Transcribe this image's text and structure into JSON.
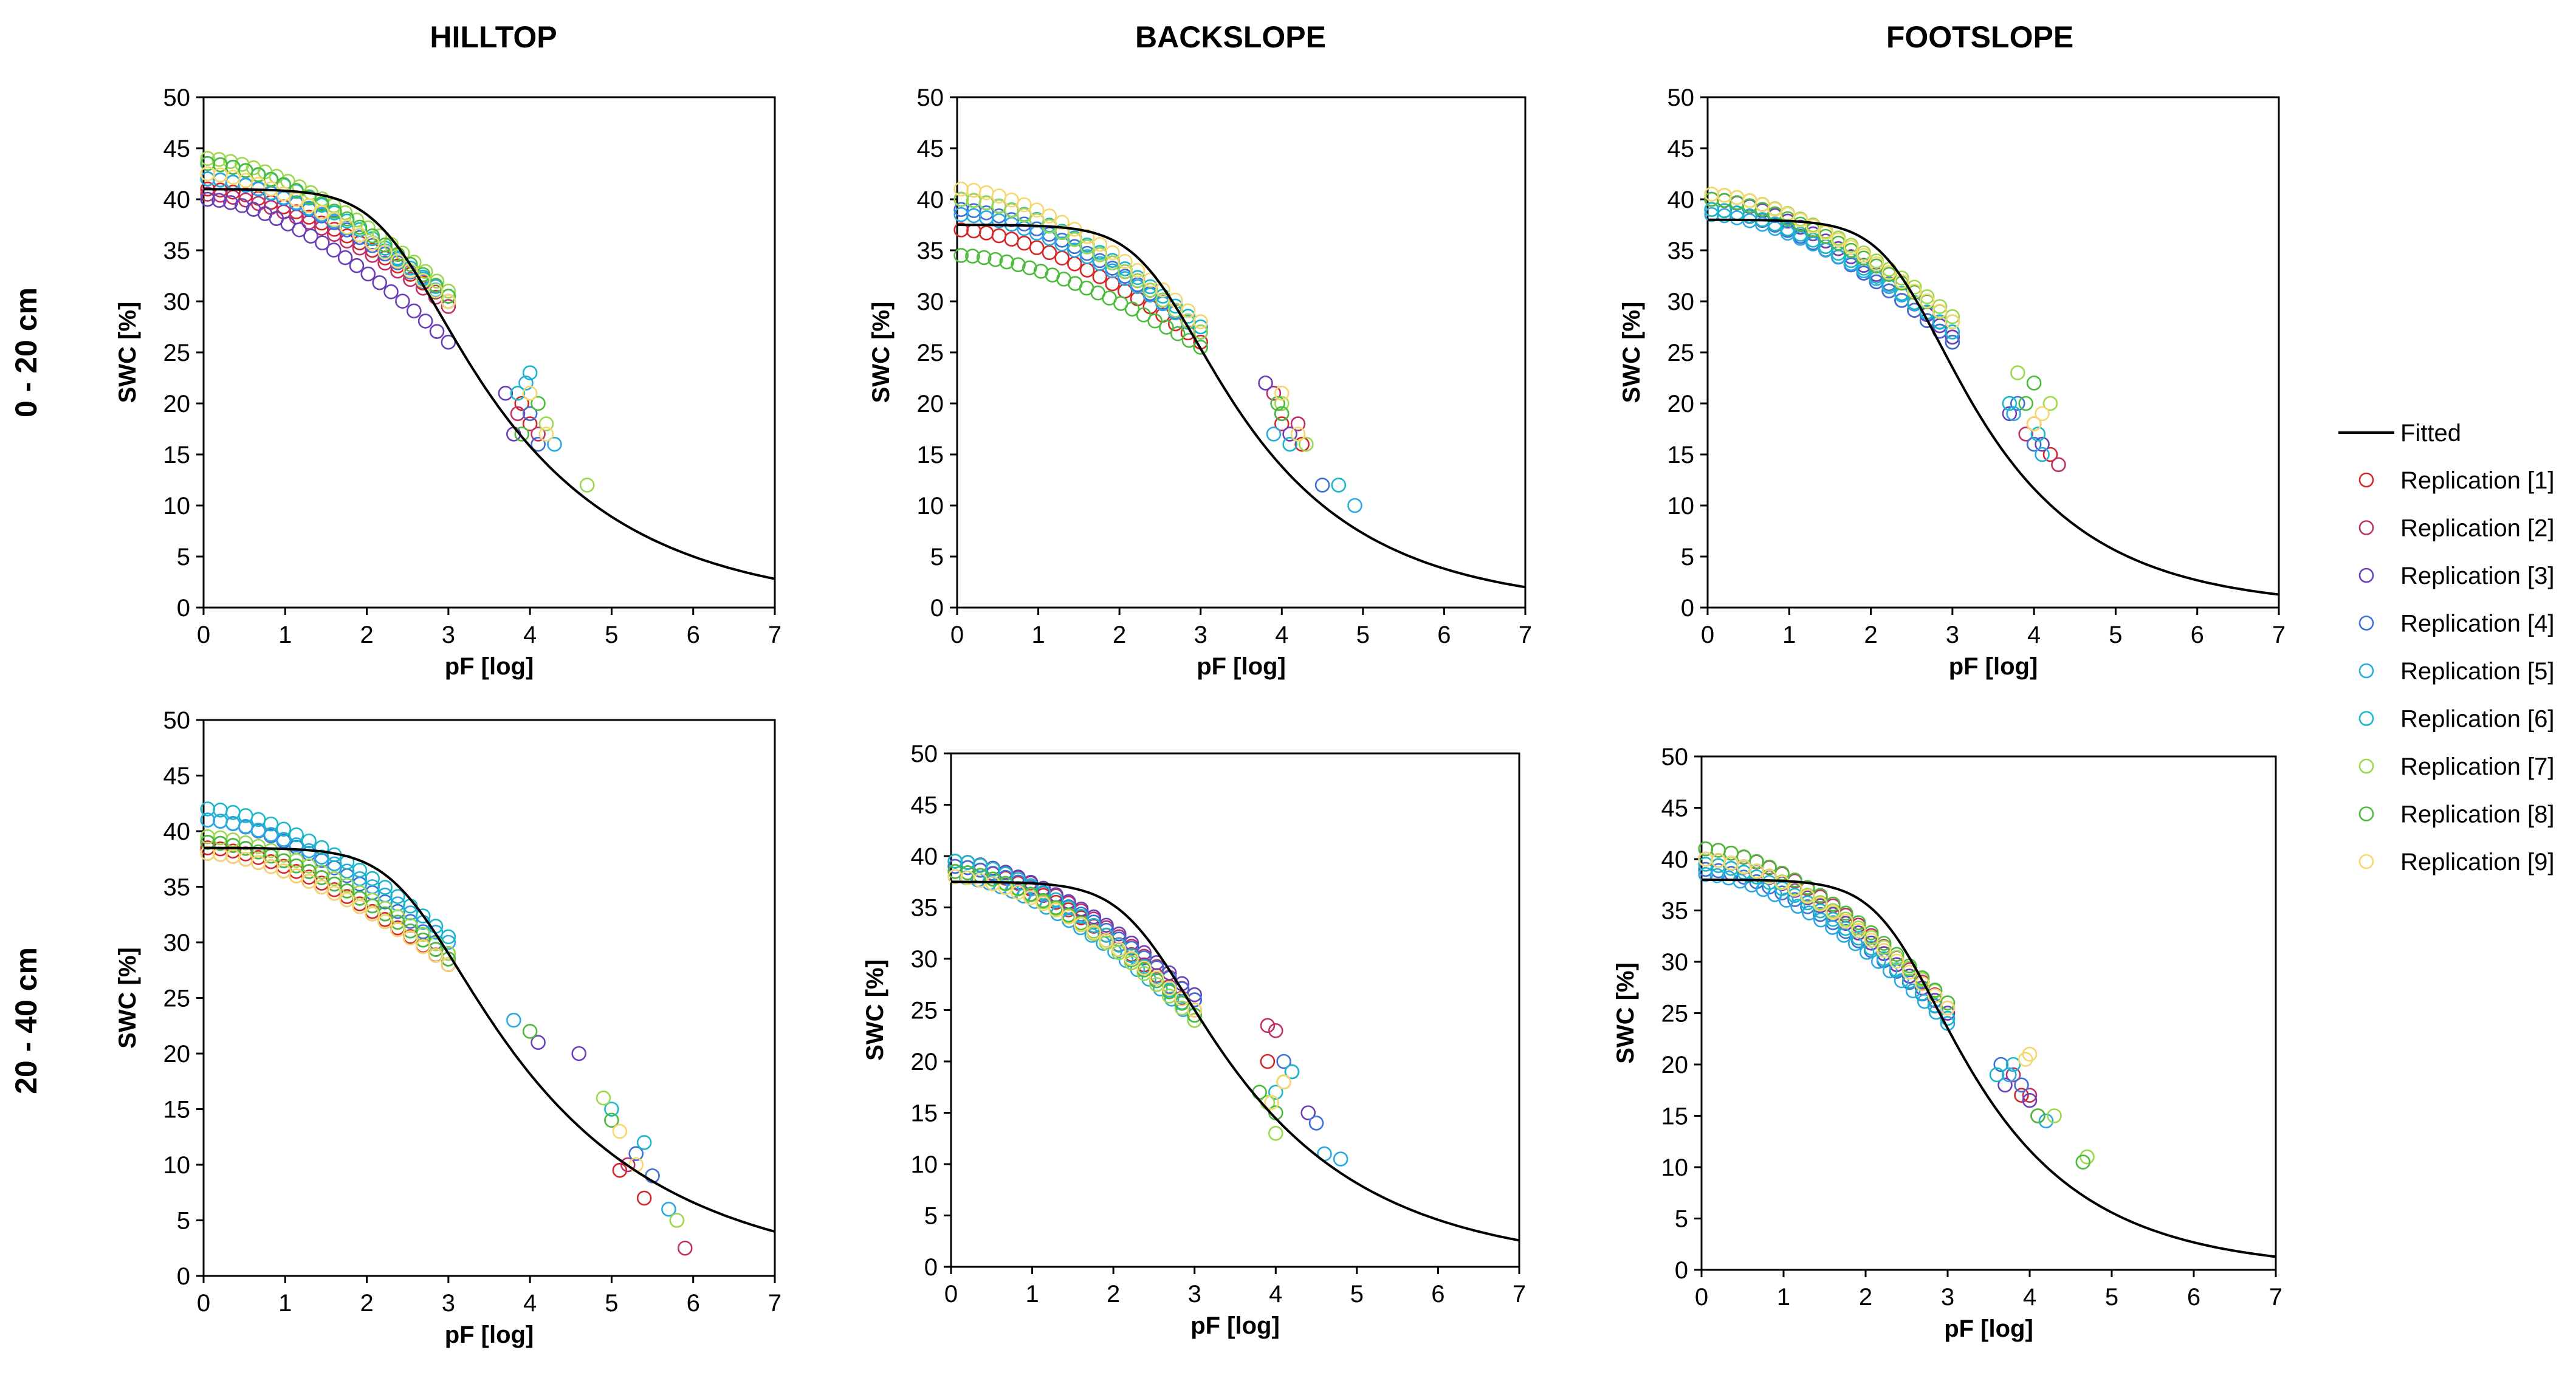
{
  "column_titles": [
    "HILLTOP",
    "BACKSLOPE",
    "FOOTSLOPE"
  ],
  "row_labels": [
    "0 - 20 cm",
    "20 - 40 cm"
  ],
  "legend": {
    "fitted_label": "Fitted",
    "replications": [
      {
        "label": "Replication [1]",
        "color": "#d62728"
      },
      {
        "label": "Replication [2]",
        "color": "#c0306a"
      },
      {
        "label": "Replication [3]",
        "color": "#6a3fb8"
      },
      {
        "label": "Replication [4]",
        "color": "#3c6fd8"
      },
      {
        "label": "Replication [5]",
        "color": "#29a9e0"
      },
      {
        "label": "Replication [6]",
        "color": "#18b7c9"
      },
      {
        "label": "Replication [7]",
        "color": "#9bd84d"
      },
      {
        "label": "Replication [8]",
        "color": "#4cbb3c"
      },
      {
        "label": "Replication [9]",
        "color": "#f5d76e"
      }
    ]
  },
  "chart_data": [
    {
      "type": "scatter",
      "title": "HILLTOP",
      "depth": "0 - 20 cm",
      "xlabel": "pF [log]",
      "ylabel": "SWC [%]",
      "xlim": [
        0,
        7
      ],
      "ylim": [
        0,
        50
      ],
      "xticks": [
        0,
        1,
        2,
        3,
        4,
        5,
        6,
        7
      ],
      "yticks": [
        0,
        5,
        10,
        15,
        20,
        25,
        30,
        35,
        40,
        45,
        50
      ],
      "fitted": {
        "theta_r": 0,
        "theta_s": 41,
        "alpha": 0.0045,
        "n": 1.25
      },
      "series": [
        {
          "name": "Replication [1]",
          "ws": 41,
          "wd": 30,
          "n": 20,
          "wet": [
            [
              4.0,
              18
            ],
            [
              3.9,
              20
            ]
          ]
        },
        {
          "name": "Replication [2]",
          "ws": 40.5,
          "wd": 29.5,
          "n": 20,
          "wet": [
            [
              4.1,
              17
            ],
            [
              3.85,
              19
            ]
          ]
        },
        {
          "name": "Replication [3]",
          "ws": 40,
          "wd": 26,
          "n": 22,
          "wet": [
            [
              3.7,
              21
            ],
            [
              3.8,
              17
            ]
          ]
        },
        {
          "name": "Replication [4]",
          "ws": 42,
          "wd": 30,
          "n": 20,
          "wet": [
            [
              4.0,
              19
            ],
            [
              4.1,
              16
            ]
          ]
        },
        {
          "name": "Replication [5]",
          "ws": 42,
          "wd": 30.5,
          "n": 20,
          "wet": [
            [
              3.95,
              22
            ],
            [
              4.3,
              16
            ]
          ]
        },
        {
          "name": "Replication [6]",
          "ws": 43.5,
          "wd": 30,
          "n": 20,
          "wet": [
            [
              4.0,
              23
            ],
            [
              3.85,
              21
            ]
          ]
        },
        {
          "name": "Replication [7]",
          "ws": 44,
          "wd": 31,
          "n": 22,
          "wet": [
            [
              4.7,
              12
            ],
            [
              4.2,
              18
            ]
          ]
        },
        {
          "name": "Replication [8]",
          "ws": 43.5,
          "wd": 30.5,
          "n": 20,
          "wet": [
            [
              3.9,
              17
            ],
            [
              4.1,
              20
            ]
          ]
        },
        {
          "name": "Replication [9]",
          "ws": 42.5,
          "wd": 30,
          "n": 20,
          "wet": [
            [
              4.0,
              21
            ],
            [
              4.2,
              17
            ]
          ]
        }
      ]
    },
    {
      "type": "scatter",
      "title": "BACKSLOPE",
      "depth": "0 - 20 cm",
      "xlabel": "pF [log]",
      "ylabel": "SWC [%]",
      "xlim": [
        0,
        7
      ],
      "ylim": [
        0,
        50
      ],
      "xticks": [
        0,
        1,
        2,
        3,
        4,
        5,
        6,
        7
      ],
      "yticks": [
        0,
        5,
        10,
        15,
        20,
        25,
        30,
        35,
        40,
        45,
        50
      ],
      "fitted": {
        "theta_r": 0,
        "theta_s": 37.5,
        "alpha": 0.0035,
        "n": 1.28
      },
      "series": [
        {
          "name": "Replication [1]",
          "ws": 37,
          "wd": 26,
          "n": 20,
          "wet": [
            [
              4.0,
              18
            ],
            [
              4.25,
              16
            ]
          ]
        },
        {
          "name": "Replication [2]",
          "ws": 40,
          "wd": 27,
          "n": 20,
          "wet": [
            [
              3.9,
              21
            ],
            [
              4.2,
              18
            ]
          ]
        },
        {
          "name": "Replication [3]",
          "ws": 40,
          "wd": 27,
          "n": 20,
          "wet": [
            [
              3.8,
              22
            ],
            [
              4.1,
              17
            ]
          ]
        },
        {
          "name": "Replication [4]",
          "ws": 39,
          "wd": 27,
          "n": 20,
          "wet": [
            [
              4.0,
              19
            ],
            [
              4.5,
              12
            ]
          ]
        },
        {
          "name": "Replication [5]",
          "ws": 38.5,
          "wd": 27,
          "n": 20,
          "wet": [
            [
              4.9,
              10
            ],
            [
              3.9,
              17
            ]
          ]
        },
        {
          "name": "Replication [6]",
          "ws": 40,
          "wd": 27.5,
          "n": 20,
          "wet": [
            [
              4.7,
              12
            ],
            [
              4.1,
              16
            ]
          ]
        },
        {
          "name": "Replication [7]",
          "ws": 40,
          "wd": 27,
          "n": 20,
          "wet": [
            [
              4.0,
              20
            ],
            [
              4.3,
              16
            ]
          ]
        },
        {
          "name": "Replication [8]",
          "ws": 34.5,
          "wd": 25.5,
          "n": 22,
          "wet": [
            [
              4.0,
              19
            ],
            [
              3.95,
              20
            ]
          ]
        },
        {
          "name": "Replication [9]",
          "ws": 41,
          "wd": 28,
          "n": 20,
          "wet": [
            [
              4.0,
              21
            ],
            [
              4.2,
              17
            ]
          ]
        }
      ]
    },
    {
      "type": "scatter",
      "title": "FOOTSLOPE",
      "depth": "0 - 20 cm",
      "xlabel": "pF [log]",
      "ylabel": "SWC [%]",
      "xlim": [
        0,
        7
      ],
      "ylim": [
        0,
        50
      ],
      "xticks": [
        0,
        1,
        2,
        3,
        4,
        5,
        6,
        7
      ],
      "yticks": [
        0,
        5,
        10,
        15,
        20,
        25,
        30,
        35,
        40,
        45,
        50
      ],
      "fitted": {
        "theta_r": 0,
        "theta_s": 38,
        "alpha": 0.004,
        "n": 1.32
      },
      "series": [
        {
          "name": "Replication [1]",
          "ws": 39,
          "wd": 26,
          "n": 20,
          "wet": [
            [
              4.0,
              18
            ],
            [
              4.2,
              15
            ]
          ]
        },
        {
          "name": "Replication [2]",
          "ws": 40,
          "wd": 26.5,
          "n": 20,
          "wet": [
            [
              4.3,
              14
            ],
            [
              3.9,
              17
            ]
          ]
        },
        {
          "name": "Replication [3]",
          "ws": 40,
          "wd": 26.5,
          "n": 20,
          "wet": [
            [
              3.7,
              19
            ],
            [
              4.1,
              16
            ]
          ]
        },
        {
          "name": "Replication [4]",
          "ws": 39,
          "wd": 26,
          "n": 20,
          "wet": [
            [
              4.0,
              16
            ],
            [
              3.8,
              20
            ]
          ]
        },
        {
          "name": "Replication [5]",
          "ws": 38.5,
          "wd": 27,
          "n": 20,
          "wet": [
            [
              4.1,
              15
            ],
            [
              3.75,
              19
            ]
          ]
        },
        {
          "name": "Replication [6]",
          "ws": 39,
          "wd": 27,
          "n": 20,
          "wet": [
            [
              3.7,
              20
            ],
            [
              4.05,
              17
            ]
          ]
        },
        {
          "name": "Replication [7]",
          "ws": 40.5,
          "wd": 28.5,
          "n": 20,
          "wet": [
            [
              3.8,
              23
            ],
            [
              4.2,
              20
            ]
          ]
        },
        {
          "name": "Replication [8]",
          "ws": 40,
          "wd": 28,
          "n": 20,
          "wet": [
            [
              4.0,
              22
            ],
            [
              3.9,
              20
            ]
          ]
        },
        {
          "name": "Replication [9]",
          "ws": 40.5,
          "wd": 28,
          "n": 20,
          "wet": [
            [
              4.1,
              19
            ],
            [
              4.0,
              18
            ]
          ]
        }
      ]
    },
    {
      "type": "scatter",
      "title": "HILLTOP",
      "depth": "20 - 40 cm",
      "xlabel": "pF [log]",
      "ylabel": "SWC [%]",
      "xlim": [
        0,
        7
      ],
      "ylim": [
        0,
        50
      ],
      "xticks": [
        0,
        1,
        2,
        3,
        4,
        5,
        6,
        7
      ],
      "yticks": [
        0,
        5,
        10,
        15,
        20,
        25,
        30,
        35,
        40,
        45,
        50
      ],
      "fitted": {
        "theta_r": 0,
        "theta_s": 38.5,
        "alpha": 0.003,
        "n": 1.22
      },
      "series": [
        {
          "name": "Replication [1]",
          "ws": 38.5,
          "wd": 28,
          "n": 20,
          "wet": [
            [
              5.1,
              9.5
            ],
            [
              5.4,
              7
            ]
          ]
        },
        {
          "name": "Replication [2]",
          "ws": 38,
          "wd": 28,
          "n": 20,
          "wet": [
            [
              5.2,
              10
            ],
            [
              5.9,
              2.5
            ]
          ]
        },
        {
          "name": "Replication [3]",
          "ws": 39,
          "wd": 28.5,
          "n": 20,
          "wet": [
            [
              4.6,
              20
            ],
            [
              4.1,
              21
            ]
          ]
        },
        {
          "name": "Replication [4]",
          "ws": 41,
          "wd": 29,
          "n": 20,
          "wet": [
            [
              5.3,
              11
            ],
            [
              5.5,
              9
            ]
          ]
        },
        {
          "name": "Replication [5]",
          "ws": 41,
          "wd": 30,
          "n": 20,
          "wet": [
            [
              3.8,
              23
            ],
            [
              5.7,
              6
            ]
          ]
        },
        {
          "name": "Replication [6]",
          "ws": 42,
          "wd": 30.5,
          "n": 20,
          "wet": [
            [
              5.4,
              12
            ],
            [
              5.0,
              15
            ]
          ]
        },
        {
          "name": "Replication [7]",
          "ws": 39.5,
          "wd": 29,
          "n": 20,
          "wet": [
            [
              4.9,
              16
            ],
            [
              5.8,
              5
            ]
          ]
        },
        {
          "name": "Replication [8]",
          "ws": 39,
          "wd": 28.5,
          "n": 20,
          "wet": [
            [
              4.0,
              22
            ],
            [
              5.0,
              14
            ]
          ]
        },
        {
          "name": "Replication [9]",
          "ws": 38,
          "wd": 28,
          "n": 20,
          "wet": [
            [
              5.1,
              13
            ],
            [
              5.3,
              10
            ]
          ]
        }
      ]
    },
    {
      "type": "scatter",
      "title": "BACKSLOPE",
      "depth": "20 - 40 cm",
      "xlabel": "pF [log]",
      "ylabel": "SWC [%]",
      "xlim": [
        0,
        7
      ],
      "ylim": [
        0,
        50
      ],
      "xticks": [
        0,
        1,
        2,
        3,
        4,
        5,
        6,
        7
      ],
      "yticks": [
        0,
        5,
        10,
        15,
        20,
        25,
        30,
        35,
        40,
        45,
        50
      ],
      "fitted": {
        "theta_r": 0,
        "theta_s": 37.5,
        "alpha": 0.0045,
        "n": 1.25
      },
      "series": [
        {
          "name": "Replication [1]",
          "ws": 39,
          "wd": 25,
          "n": 20,
          "wet": [
            [
              3.9,
              20
            ],
            [
              4.1,
              18
            ]
          ]
        },
        {
          "name": "Replication [2]",
          "ws": 39.5,
          "wd": 26,
          "n": 20,
          "wet": [
            [
              3.9,
              23.5
            ],
            [
              4.0,
              23
            ]
          ]
        },
        {
          "name": "Replication [3]",
          "ws": 39.5,
          "wd": 26.5,
          "n": 20,
          "wet": [
            [
              4.2,
              19
            ],
            [
              4.4,
              15
            ]
          ]
        },
        {
          "name": "Replication [4]",
          "ws": 39,
          "wd": 26,
          "n": 20,
          "wet": [
            [
              4.1,
              20
            ],
            [
              4.5,
              14
            ]
          ]
        },
        {
          "name": "Replication [5]",
          "ws": 38,
          "wd": 24,
          "n": 22,
          "wet": [
            [
              4.6,
              11
            ],
            [
              4.8,
              10.5
            ]
          ]
        },
        {
          "name": "Replication [6]",
          "ws": 39.5,
          "wd": 24.5,
          "n": 20,
          "wet": [
            [
              4.0,
              17
            ],
            [
              4.2,
              19
            ]
          ]
        },
        {
          "name": "Replication [7]",
          "ws": 38.5,
          "wd": 24,
          "n": 20,
          "wet": [
            [
              4.0,
              13
            ],
            [
              3.9,
              16
            ]
          ]
        },
        {
          "name": "Replication [8]",
          "ws": 38.5,
          "wd": 24.5,
          "n": 20,
          "wet": [
            [
              3.8,
              17
            ],
            [
              4.0,
              15
            ]
          ]
        },
        {
          "name": "Replication [9]",
          "ws": 38,
          "wd": 25,
          "n": 20,
          "wet": [
            [
              4.1,
              18
            ],
            [
              3.95,
              16
            ]
          ]
        }
      ]
    },
    {
      "type": "scatter",
      "title": "FOOTSLOPE",
      "depth": "20 - 40 cm",
      "xlabel": "pF [log]",
      "ylabel": "SWC [%]",
      "xlim": [
        0,
        7
      ],
      "ylim": [
        0,
        50
      ],
      "xticks": [
        0,
        1,
        2,
        3,
        4,
        5,
        6,
        7
      ],
      "yticks": [
        0,
        5,
        10,
        15,
        20,
        25,
        30,
        35,
        40,
        45,
        50
      ],
      "fitted": {
        "theta_r": 0,
        "theta_s": 38,
        "alpha": 0.004,
        "n": 1.32
      },
      "series": [
        {
          "name": "Replication [1]",
          "ws": 40,
          "wd": 25,
          "n": 20,
          "wet": [
            [
              3.9,
              17
            ],
            [
              4.1,
              15
            ]
          ]
        },
        {
          "name": "Replication [2]",
          "ws": 41,
          "wd": 25.5,
          "n": 20,
          "wet": [
            [
              3.8,
              19
            ],
            [
              4.0,
              17
            ]
          ]
        },
        {
          "name": "Replication [3]",
          "ws": 40,
          "wd": 25,
          "n": 20,
          "wet": [
            [
              3.7,
              18
            ],
            [
              4.0,
              16.5
            ]
          ]
        },
        {
          "name": "Replication [4]",
          "ws": 39,
          "wd": 24.5,
          "n": 20,
          "wet": [
            [
              3.9,
              18
            ],
            [
              3.65,
              20
            ]
          ]
        },
        {
          "name": "Replication [5]",
          "ws": 38.5,
          "wd": 24,
          "n": 22,
          "wet": [
            [
              3.75,
              19
            ],
            [
              4.2,
              14.5
            ]
          ]
        },
        {
          "name": "Replication [6]",
          "ws": 39.5,
          "wd": 24.5,
          "n": 20,
          "wet": [
            [
              3.8,
              20
            ],
            [
              3.6,
              19
            ]
          ]
        },
        {
          "name": "Replication [7]",
          "ws": 40,
          "wd": 26,
          "n": 20,
          "wet": [
            [
              4.7,
              11
            ],
            [
              4.3,
              15
            ]
          ]
        },
        {
          "name": "Replication [8]",
          "ws": 41,
          "wd": 26,
          "n": 20,
          "wet": [
            [
              4.65,
              10.5
            ],
            [
              4.1,
              15
            ]
          ]
        },
        {
          "name": "Replication [9]",
          "ws": 40,
          "wd": 25.5,
          "n": 20,
          "wet": [
            [
              4.0,
              21
            ],
            [
              3.95,
              20.5
            ]
          ]
        }
      ]
    }
  ]
}
